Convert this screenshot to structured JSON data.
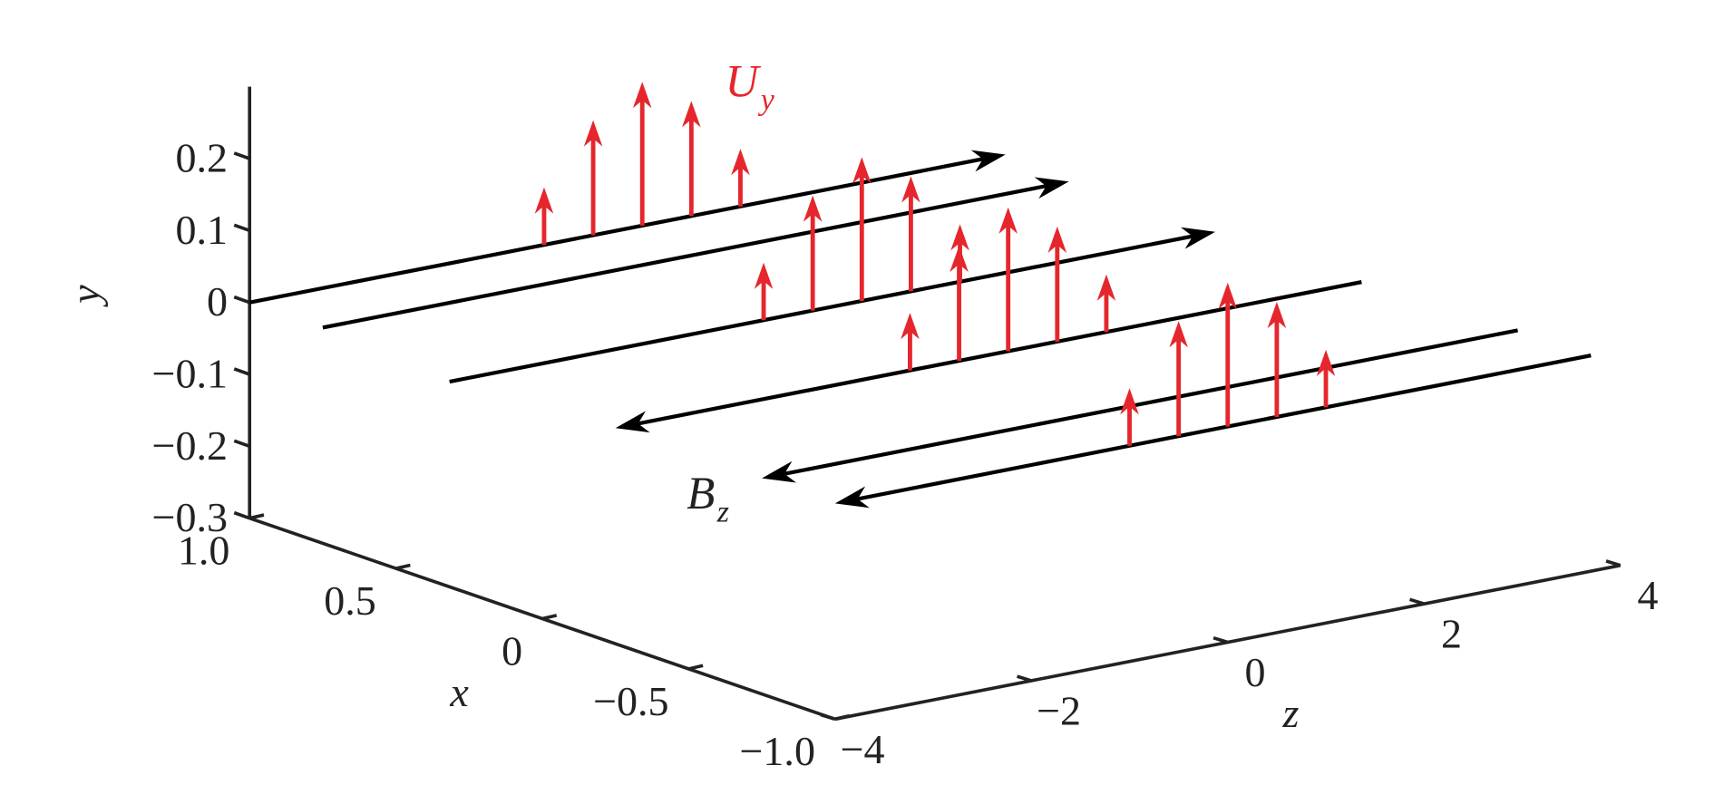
{
  "chart_data": {
    "type": "quiver3d",
    "xlabel": "x",
    "ylabel": "y",
    "zlabel": "z",
    "xlim": [
      -1,
      1
    ],
    "ylim": [
      -0.3,
      0.3
    ],
    "zlim": [
      -4,
      4
    ],
    "xticks": [
      {
        "value": 1,
        "label": "1.0"
      },
      0.5,
      0,
      {
        "value": -0.5,
        "label": "−0.5"
      },
      {
        "value": -1,
        "label": "−1.0"
      }
    ],
    "yticks": [
      0.2,
      0.1,
      0,
      {
        "value": -0.1,
        "label": "−0.1"
      },
      {
        "value": -0.2,
        "label": "−0.2"
      },
      {
        "value": -0.3,
        "label": "−0.3"
      }
    ],
    "zticks": [
      {
        "value": -4,
        "label": "−4"
      },
      {
        "value": -2,
        "label": "−2"
      },
      0,
      2,
      4
    ],
    "line_color": "#000000",
    "arrow_color": "#e5262d",
    "lines": [
      {
        "x": 1,
        "y": 0,
        "z": [
          -4,
          3.7
        ]
      },
      {
        "x": 0.75,
        "y": 0,
        "z": [
          -4,
          3.6
        ]
      },
      {
        "x": 0.25,
        "y": 0,
        "z": [
          -4.2,
          3.6
        ]
      },
      {
        "x": -0.25,
        "y": 0,
        "z": [
          3.6,
          -4
        ]
      },
      {
        "x": -0.75,
        "y": 0,
        "z": [
          3.7,
          -4
        ]
      },
      {
        "x": -1,
        "y": 0,
        "z": [
          3.7,
          -4
        ]
      }
    ],
    "arrows": [
      {
        "x": 1,
        "z": [
          -1,
          -0.5,
          0,
          0.5,
          1
        ],
        "values": [
          0.08,
          0.16,
          0.2,
          0.16,
          0.08
        ]
      },
      {
        "x": 0.25,
        "z": [
          -1,
          -0.5,
          0,
          0.5,
          1
        ],
        "values": [
          0.08,
          0.16,
          0.2,
          0.16,
          0.08
        ]
      },
      {
        "x": -0.25,
        "z": [
          -1,
          -0.5,
          0,
          0.5,
          1
        ],
        "values": [
          0.08,
          0.16,
          0.2,
          0.16,
          0.08
        ]
      },
      {
        "x": -1,
        "z": [
          -1,
          -0.5,
          0,
          0.5,
          1
        ],
        "values": [
          0.08,
          0.16,
          0.2,
          0.16,
          0.08
        ]
      }
    ],
    "annotations": [
      {
        "text": "U",
        "subscript": "y"
      },
      {
        "text": "B",
        "subscript": "z"
      }
    ]
  }
}
